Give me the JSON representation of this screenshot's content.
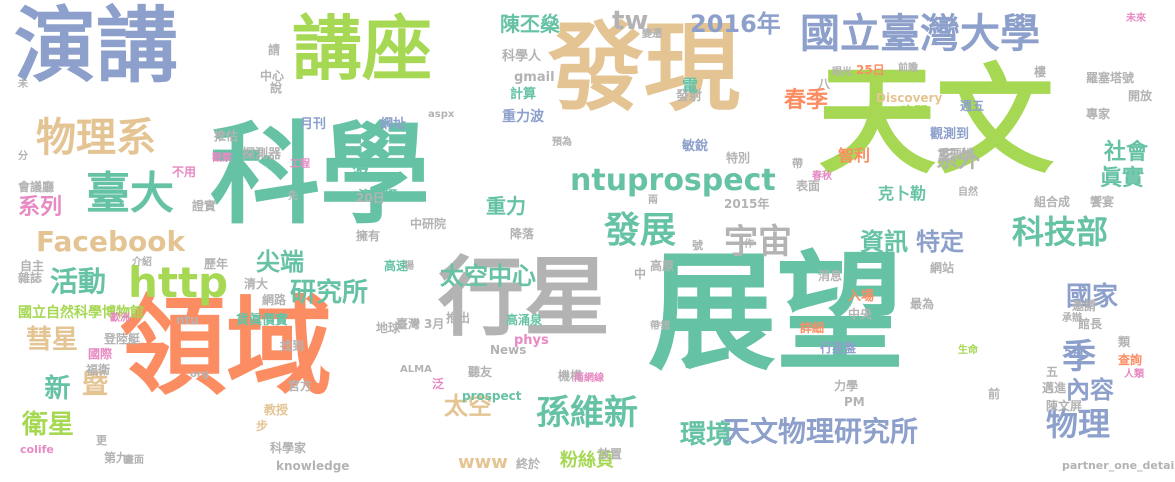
{
  "words": [
    {
      "text": "展望",
      "color": "#66c2a5"
    },
    {
      "text": "天文",
      "color": "#a6d854"
    },
    {
      "text": "科學",
      "color": "#66c2a5"
    },
    {
      "text": "發現",
      "color": "#e5c494"
    },
    {
      "text": "領域",
      "color": "#fc8d62"
    },
    {
      "text": "演講",
      "color": "#8da0cb"
    },
    {
      "text": "講座",
      "color": "#a6d854"
    },
    {
      "text": "行星",
      "color": "#b3b3b3"
    },
    {
      "text": "國立臺灣大學",
      "color": "#8da0cb"
    },
    {
      "text": "物理系",
      "color": "#e5c494"
    },
    {
      "text": "臺大",
      "color": "#66c2a5"
    },
    {
      "text": "ntuprospect",
      "color": "#66c2a5"
    },
    {
      "text": "http",
      "color": "#a6d854"
    },
    {
      "text": "Facebook",
      "color": "#e5c494"
    },
    {
      "text": "發展",
      "color": "#66c2a5"
    },
    {
      "text": "宇宙",
      "color": "#b3b3b3"
    },
    {
      "text": "科技部",
      "color": "#66c2a5"
    },
    {
      "text": "孫維新",
      "color": "#66c2a5"
    },
    {
      "text": "天文物理研究所",
      "color": "#8da0cb"
    },
    {
      "text": "物理",
      "color": "#8da0cb"
    },
    {
      "text": "研究所",
      "color": "#66c2a5"
    },
    {
      "text": "太空中心",
      "color": "#66c2a5"
    },
    {
      "text": "活動",
      "color": "#66c2a5"
    },
    {
      "text": "彗星",
      "color": "#e5c494"
    },
    {
      "text": "衛星",
      "color": "#a6d854"
    },
    {
      "text": "新",
      "color": "#66c2a5"
    },
    {
      "text": "暨",
      "color": "#e5c494"
    },
    {
      "text": "太空",
      "color": "#e5c494"
    },
    {
      "text": "環境",
      "color": "#66c2a5"
    },
    {
      "text": "季",
      "color": "#8da0cb"
    },
    {
      "text": "內容",
      "color": "#8da0cb"
    },
    {
      "text": "國家",
      "color": "#8da0cb"
    },
    {
      "text": "資訊",
      "color": "#66c2a5"
    },
    {
      "text": "特定",
      "color": "#8da0cb"
    },
    {
      "text": "尖端",
      "color": "#66c2a5"
    },
    {
      "text": "2016年",
      "color": "#8da0cb"
    },
    {
      "text": "陳丕燊",
      "color": "#66c2a5"
    },
    {
      "text": "tw",
      "color": "#b3b3b3"
    },
    {
      "text": "社會",
      "color": "#66c2a5"
    },
    {
      "text": "眞實",
      "color": "#66c2a5"
    },
    {
      "text": "系外",
      "color": "#b3b3b3"
    },
    {
      "text": "系列",
      "color": "#e78ac3"
    },
    {
      "text": "重力",
      "color": "#66c2a5"
    },
    {
      "text": "波",
      "color": "#66c2a5"
    },
    {
      "text": "粉絲頁",
      "color": "#a6d854"
    },
    {
      "text": "www",
      "color": "#e5c494"
    },
    {
      "text": "重力波",
      "color": "#8da0cb"
    },
    {
      "text": "計算",
      "color": "#66c2a5"
    },
    {
      "text": "網址",
      "color": "#8da0cb"
    },
    {
      "text": "月刊",
      "color": "#8da0cb"
    },
    {
      "text": "探測器",
      "color": "#b3b3b3"
    },
    {
      "text": "推估",
      "color": "#b3b3b3"
    },
    {
      "text": "演講網",
      "color": "#66c2a5"
    },
    {
      "text": "科學人",
      "color": "#b3b3b3"
    },
    {
      "text": "gmail",
      "color": "#b3b3b3"
    },
    {
      "text": "發射",
      "color": "#b3b3b3"
    },
    {
      "text": "敏銳",
      "color": "#8da0cb"
    },
    {
      "text": "春季",
      "color": "#fc8d62"
    },
    {
      "text": "晚間",
      "color": "#a6d854"
    },
    {
      "text": "觀測到",
      "color": "#8da0cb"
    },
    {
      "text": "重要性",
      "color": "#b3b3b3"
    },
    {
      "text": "智利",
      "color": "#fc8d62"
    },
    {
      "text": "克卜勒",
      "color": "#66c2a5"
    },
    {
      "text": "組合成",
      "color": "#b3b3b3"
    },
    {
      "text": "饗宴",
      "color": "#b3b3b3"
    },
    {
      "text": "專家",
      "color": "#b3b3b3"
    },
    {
      "text": "開放",
      "color": "#b3b3b3"
    },
    {
      "text": "羅塞塔號",
      "color": "#b3b3b3"
    },
    {
      "text": "週五",
      "color": "#8da0cb"
    },
    {
      "text": "樓",
      "color": "#b3b3b3"
    },
    {
      "text": "25日",
      "color": "#fc8d62"
    },
    {
      "text": "Discovery",
      "color": "#e5c494"
    },
    {
      "text": "特別",
      "color": "#b3b3b3"
    },
    {
      "text": "表面",
      "color": "#b3b3b3"
    },
    {
      "text": "2015年",
      "color": "#b3b3b3"
    },
    {
      "text": "20日",
      "color": "#b3b3b3"
    },
    {
      "text": "擁有",
      "color": "#b3b3b3"
    },
    {
      "text": "中研院",
      "color": "#b3b3b3"
    },
    {
      "text": "降落",
      "color": "#b3b3b3"
    },
    {
      "text": "高速",
      "color": "#66c2a5"
    },
    {
      "text": "高原",
      "color": "#b3b3b3"
    },
    {
      "text": "臺灣",
      "color": "#b3b3b3"
    },
    {
      "text": "推出",
      "color": "#b3b3b3"
    },
    {
      "text": "高涌泉",
      "color": "#66c2a5"
    },
    {
      "text": "消息",
      "color": "#b3b3b3"
    },
    {
      "text": "網站",
      "color": "#b3b3b3"
    },
    {
      "text": "入場",
      "color": "#fc8d62"
    },
    {
      "text": "中央",
      "color": "#b3b3b3"
    },
    {
      "text": "最為",
      "color": "#b3b3b3"
    },
    {
      "text": "詳細",
      "color": "#fc8d62"
    },
    {
      "text": "行星盤",
      "color": "#8da0cb"
    },
    {
      "text": "邀請",
      "color": "#b3b3b3"
    },
    {
      "text": "館長",
      "color": "#b3b3b3"
    },
    {
      "text": "類",
      "color": "#b3b3b3"
    },
    {
      "text": "查詢",
      "color": "#fc8d62"
    },
    {
      "text": "5月",
      "color": "#8da0cb"
    },
    {
      "text": "邁進",
      "color": "#b3b3b3"
    },
    {
      "text": "陳文屏",
      "color": "#b3b3b3"
    },
    {
      "text": "力學",
      "color": "#b3b3b3"
    },
    {
      "text": "PM",
      "color": "#b3b3b3"
    },
    {
      "text": "機構",
      "color": "#b3b3b3"
    },
    {
      "text": "News",
      "color": "#b3b3b3"
    },
    {
      "text": "prospect",
      "color": "#66c2a5"
    },
    {
      "text": "phys",
      "color": "#e78ac3"
    },
    {
      "text": "聽友",
      "color": "#b3b3b3"
    },
    {
      "text": "地球",
      "color": "#b3b3b3"
    },
    {
      "text": "國立自然科學博物館",
      "color": "#a6d854"
    },
    {
      "text": "貨眞價實",
      "color": "#66c2a5"
    },
    {
      "text": "ntu",
      "color": "#b3b3b3"
    },
    {
      "text": "清大",
      "color": "#b3b3b3"
    },
    {
      "text": "網路",
      "color": "#b3b3b3"
    },
    {
      "text": "歷年",
      "color": "#b3b3b3"
    },
    {
      "text": "3月",
      "color": "#b3b3b3"
    },
    {
      "text": "找到",
      "color": "#b3b3b3"
    },
    {
      "text": "官方",
      "color": "#b3b3b3"
    },
    {
      "text": "教授",
      "color": "#e5c494"
    },
    {
      "text": "科學家",
      "color": "#b3b3b3"
    },
    {
      "text": "knowledge",
      "color": "#b3b3b3"
    },
    {
      "text": "終於",
      "color": "#b3b3b3"
    },
    {
      "text": "放置",
      "color": "#b3b3b3"
    },
    {
      "text": "partner_one_detail",
      "color": "#b3b3b3"
    },
    {
      "text": "第九",
      "color": "#b3b3b3"
    },
    {
      "text": "更",
      "color": "#b3b3b3"
    },
    {
      "text": "福衛",
      "color": "#b3b3b3"
    },
    {
      "text": "國際",
      "color": "#e78ac3"
    },
    {
      "text": "登陸艇",
      "color": "#b3b3b3"
    },
    {
      "text": "雜誌",
      "color": "#b3b3b3"
    },
    {
      "text": "自主",
      "color": "#b3b3b3"
    },
    {
      "text": "證實",
      "color": "#b3b3b3"
    },
    {
      "text": "會議廳",
      "color": "#b3b3b3"
    },
    {
      "text": "不用",
      "color": "#e78ac3"
    },
    {
      "text": "中心",
      "color": "#b3b3b3"
    },
    {
      "text": "說",
      "color": "#b3b3b3"
    },
    {
      "text": "請",
      "color": "#b3b3b3"
    },
    {
      "text": "colife",
      "color": "#e78ac3"
    },
    {
      "text": "歐洲",
      "color": "#e78ac3"
    },
    {
      "text": "aspx",
      "color": "#b3b3b3"
    },
    {
      "text": "前",
      "color": "#b3b3b3"
    },
    {
      "text": "五",
      "color": "#b3b3b3"
    },
    {
      "text": "八",
      "color": "#b3b3b3"
    },
    {
      "text": "電",
      "color": "#66c2a5"
    },
    {
      "text": "ALMA",
      "color": "#b3b3b3"
    },
    {
      "text": "org",
      "color": "#b3b3b3"
    },
    {
      "text": "步",
      "color": "#e5c494"
    },
    {
      "text": "泛",
      "color": "#e78ac3"
    },
    {
      "text": "預為",
      "color": "#b3b3b3"
    },
    {
      "text": "帶",
      "color": "#b3b3b3"
    },
    {
      "text": "春秋",
      "color": "#e78ac3"
    },
    {
      "text": "工程",
      "color": "#e78ac3"
    },
    {
      "text": "觀察",
      "color": "#e78ac3"
    },
    {
      "text": "先",
      "color": "#b3b3b3"
    },
    {
      "text": "兩",
      "color": "#b3b3b3"
    },
    {
      "text": "號",
      "color": "#b3b3b3"
    },
    {
      "text": "作",
      "color": "#b3b3b3"
    },
    {
      "text": "中",
      "color": "#b3b3b3"
    },
    {
      "text": "生命",
      "color": "#a6d854"
    },
    {
      "text": "承辦",
      "color": "#b3b3b3"
    },
    {
      "text": "人類",
      "color": "#e78ac3"
    },
    {
      "text": "雨網線",
      "color": "#e78ac3"
    },
    {
      "text": "自然",
      "color": "#b3b3b3"
    },
    {
      "text": "未來",
      "color": "#e78ac3"
    },
    {
      "text": "變遷",
      "color": "#b3b3b3"
    },
    {
      "text": "眼光",
      "color": "#b3b3b3"
    },
    {
      "text": "前瞻",
      "color": "#b3b3b3"
    },
    {
      "text": "分",
      "color": "#b3b3b3"
    },
    {
      "text": "未",
      "color": "#b3b3b3"
    },
    {
      "text": "介紹",
      "color": "#b3b3b3"
    },
    {
      "text": "場",
      "color": "#b3b3b3"
    },
    {
      "text": "帶領",
      "color": "#b3b3b3"
    },
    {
      "text": "畫面",
      "color": "#b3b3b3"
    }
  ]
}
